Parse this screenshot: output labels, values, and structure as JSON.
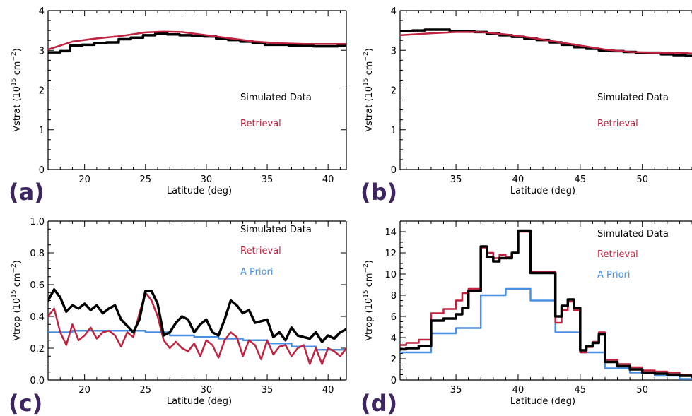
{
  "chart_data": [
    {
      "id": "a",
      "type": "line",
      "panel_label": "(a)",
      "xlabel": "Latitude (deg)",
      "ylabel_main": "Vstrat (10",
      "ylabel_exp": "15",
      "ylabel_unit": " cm",
      "ylabel_unit_exp": "−2",
      "ylabel_close": ")",
      "xlim": [
        17,
        41.5
      ],
      "ylim": [
        0,
        4
      ],
      "xticks": [
        20,
        25,
        30,
        35,
        40
      ],
      "yticks": [
        0,
        1,
        2,
        3,
        4
      ],
      "legend": [
        {
          "name": "Simulated Data",
          "color": "#000000"
        },
        {
          "name": "Retrieval",
          "color": "#c0223f"
        }
      ],
      "series": [
        {
          "name": "Simulated Data",
          "color": "#000000",
          "width": 3.5,
          "step": true,
          "x": [
            17,
            18,
            18.8,
            19.8,
            20.8,
            21.8,
            22.8,
            23.8,
            24.8,
            25.8,
            26.8,
            27.8,
            28.8,
            29.8,
            30.8,
            31.8,
            32.8,
            33.8,
            34.8,
            35.8,
            36.8,
            37.8,
            38.8,
            39.8,
            40.8,
            41.5
          ],
          "y": [
            2.95,
            2.98,
            3.12,
            3.14,
            3.18,
            3.2,
            3.28,
            3.32,
            3.38,
            3.42,
            3.4,
            3.38,
            3.36,
            3.35,
            3.3,
            3.26,
            3.22,
            3.18,
            3.14,
            3.14,
            3.12,
            3.12,
            3.1,
            3.1,
            3.12,
            3.12
          ]
        },
        {
          "name": "Retrieval",
          "color": "#c0223f",
          "width": 2.5,
          "step": false,
          "x": [
            17,
            19,
            21,
            23,
            25,
            26.5,
            28,
            30,
            32,
            34,
            36,
            38,
            40,
            41.5
          ],
          "y": [
            3.02,
            3.22,
            3.3,
            3.36,
            3.45,
            3.47,
            3.46,
            3.38,
            3.3,
            3.22,
            3.18,
            3.16,
            3.16,
            3.16
          ]
        }
      ]
    },
    {
      "id": "b",
      "type": "line",
      "panel_label": "(b)",
      "xlabel": "Latitude (deg)",
      "ylabel_main": "Vstrat (10",
      "ylabel_exp": "15",
      "ylabel_unit": " cm",
      "ylabel_unit_exp": "−2",
      "ylabel_close": ")",
      "xlim": [
        30.5,
        54
      ],
      "ylim": [
        0,
        4
      ],
      "xticks": [
        35,
        40,
        45,
        50
      ],
      "yticks": [
        0,
        1,
        2,
        3,
        4
      ],
      "legend": [
        {
          "name": "Simulated Data",
          "color": "#000000"
        },
        {
          "name": "Retrieval",
          "color": "#c0223f"
        }
      ],
      "series": [
        {
          "name": "Simulated Data",
          "color": "#000000",
          "width": 3.5,
          "step": true,
          "x": [
            30.5,
            31.5,
            32.5,
            33.5,
            34.5,
            35.5,
            36.5,
            37.5,
            38.5,
            39.5,
            40.5,
            41.5,
            42.5,
            43.5,
            44.5,
            45.5,
            46.5,
            47.5,
            48.5,
            49.5,
            50.5,
            51.5,
            52.5,
            53.5,
            54
          ],
          "y": [
            3.48,
            3.5,
            3.52,
            3.52,
            3.48,
            3.48,
            3.46,
            3.42,
            3.38,
            3.34,
            3.3,
            3.26,
            3.2,
            3.14,
            3.08,
            3.04,
            3.0,
            2.98,
            2.96,
            2.94,
            2.94,
            2.9,
            2.88,
            2.86,
            2.86
          ]
        },
        {
          "name": "Retrieval",
          "color": "#c0223f",
          "width": 2.5,
          "step": false,
          "x": [
            30.5,
            33,
            35,
            37,
            39,
            41,
            43,
            45,
            47,
            49,
            51,
            53,
            54
          ],
          "y": [
            3.38,
            3.43,
            3.46,
            3.46,
            3.4,
            3.32,
            3.22,
            3.12,
            3.02,
            2.96,
            2.94,
            2.94,
            2.92
          ]
        }
      ]
    },
    {
      "id": "c",
      "type": "line",
      "panel_label": "(c)",
      "xlabel": "Latitude (deg)",
      "ylabel_main": "Vtrop (10",
      "ylabel_exp": "15",
      "ylabel_unit": " cm",
      "ylabel_unit_exp": "−2",
      "ylabel_close": ")",
      "xlim": [
        17,
        41.5
      ],
      "ylim": [
        0,
        1.0
      ],
      "xticks": [
        20,
        25,
        30,
        35,
        40
      ],
      "yticks": [
        0.0,
        0.2,
        0.4,
        0.6,
        0.8,
        1.0
      ],
      "yfmt": 1,
      "legend": [
        {
          "name": "Simulated Data",
          "color": "#000000"
        },
        {
          "name": "Retrieval",
          "color": "#c0223f"
        },
        {
          "name": "A Priori",
          "color": "#4a90e2"
        }
      ],
      "series": [
        {
          "name": "A Priori",
          "color": "#4a90e2",
          "width": 2.5,
          "step": true,
          "x": [
            17,
            19,
            21,
            23,
            25,
            27,
            29,
            31,
            33,
            35,
            37,
            39,
            41.5
          ],
          "y": [
            0.3,
            0.31,
            0.31,
            0.31,
            0.3,
            0.28,
            0.27,
            0.26,
            0.25,
            0.23,
            0.21,
            0.19,
            0.18
          ]
        },
        {
          "name": "Retrieval",
          "color": "#c0223f",
          "width": 2.5,
          "step": false,
          "x": [
            17,
            17.5,
            18,
            18.5,
            19,
            19.5,
            20,
            20.5,
            21,
            21.5,
            22,
            22.5,
            23,
            23.5,
            24,
            24.5,
            25,
            25.5,
            26,
            26.5,
            27,
            27.5,
            28,
            28.5,
            29,
            29.5,
            30,
            30.5,
            31,
            31.5,
            32,
            32.5,
            33,
            33.5,
            34,
            34.5,
            35,
            35.5,
            36,
            36.5,
            37,
            37.5,
            38,
            38.5,
            39,
            39.5,
            40,
            40.5,
            41,
            41.5
          ],
          "y": [
            0.4,
            0.45,
            0.3,
            0.22,
            0.35,
            0.25,
            0.28,
            0.33,
            0.26,
            0.3,
            0.31,
            0.28,
            0.21,
            0.3,
            0.27,
            0.42,
            0.55,
            0.5,
            0.4,
            0.25,
            0.2,
            0.24,
            0.2,
            0.18,
            0.23,
            0.15,
            0.25,
            0.22,
            0.14,
            0.25,
            0.3,
            0.27,
            0.15,
            0.25,
            0.22,
            0.13,
            0.25,
            0.16,
            0.21,
            0.22,
            0.15,
            0.2,
            0.22,
            0.1,
            0.2,
            0.1,
            0.2,
            0.18,
            0.15,
            0.2
          ]
        },
        {
          "name": "Simulated Data",
          "color": "#000000",
          "width": 3.5,
          "step": false,
          "x": [
            17,
            17.5,
            18,
            18.5,
            19,
            19.5,
            20,
            20.5,
            21,
            21.5,
            22,
            22.5,
            23,
            23.5,
            24,
            24.5,
            25,
            25.5,
            26,
            26.5,
            27,
            27.5,
            28,
            28.5,
            29,
            29.5,
            30,
            30.5,
            31,
            31.5,
            32,
            32.5,
            33,
            33.5,
            34,
            34.5,
            35,
            35.5,
            36,
            36.5,
            37,
            37.5,
            38,
            38.5,
            39,
            39.5,
            40,
            40.5,
            41,
            41.5
          ],
          "y": [
            0.5,
            0.57,
            0.52,
            0.43,
            0.47,
            0.45,
            0.48,
            0.44,
            0.47,
            0.42,
            0.45,
            0.47,
            0.38,
            0.34,
            0.3,
            0.38,
            0.56,
            0.56,
            0.48,
            0.28,
            0.3,
            0.36,
            0.4,
            0.38,
            0.3,
            0.35,
            0.38,
            0.3,
            0.28,
            0.38,
            0.5,
            0.47,
            0.42,
            0.44,
            0.36,
            0.37,
            0.38,
            0.27,
            0.3,
            0.25,
            0.33,
            0.28,
            0.27,
            0.26,
            0.3,
            0.24,
            0.28,
            0.26,
            0.3,
            0.32
          ]
        }
      ]
    },
    {
      "id": "d",
      "type": "line",
      "panel_label": "(d)",
      "xlabel": "Latitude (deg)",
      "ylabel_main": "Vtrop (10",
      "ylabel_exp": "15",
      "ylabel_unit": " cm",
      "ylabel_unit_exp": "−2",
      "ylabel_close": ")",
      "xlim": [
        30.5,
        54
      ],
      "ylim": [
        0,
        15
      ],
      "xticks": [
        35,
        40,
        45,
        50
      ],
      "yticks": [
        0,
        2,
        4,
        6,
        8,
        10,
        12,
        14
      ],
      "legend": [
        {
          "name": "Simulated Data",
          "color": "#000000"
        },
        {
          "name": "Retrieval",
          "color": "#c0223f"
        },
        {
          "name": "A Priori",
          "color": "#4a90e2"
        }
      ],
      "series": [
        {
          "name": "A Priori",
          "color": "#4a90e2",
          "width": 2.5,
          "step": true,
          "x": [
            30.5,
            33,
            35,
            37,
            39,
            41,
            43,
            45,
            47,
            49,
            51,
            53,
            54
          ],
          "y": [
            2.6,
            4.4,
            4.9,
            8.0,
            8.6,
            7.5,
            4.5,
            2.6,
            1.1,
            0.7,
            0.4,
            0.1,
            0.1
          ]
        },
        {
          "name": "Retrieval",
          "color": "#c0223f",
          "width": 2.5,
          "step": true,
          "x": [
            30.5,
            31,
            32,
            33,
            34,
            35,
            35.5,
            36,
            37,
            37.5,
            38,
            38.5,
            39,
            39.5,
            40,
            41,
            42,
            43,
            43.5,
            44,
            44.5,
            45,
            45.5,
            46,
            46.5,
            47,
            48,
            49,
            50,
            51,
            52,
            53,
            54
          ],
          "y": [
            3.3,
            3.5,
            3.8,
            6.3,
            6.7,
            7.5,
            8.2,
            8.6,
            12.5,
            12.0,
            11.5,
            11.8,
            11.6,
            12.0,
            14.0,
            10.2,
            10.2,
            5.4,
            6.6,
            7.4,
            6.6,
            2.6,
            3.1,
            3.6,
            4.5,
            1.9,
            1.5,
            1.2,
            0.9,
            0.8,
            0.7,
            0.5,
            0.4
          ]
        },
        {
          "name": "Simulated Data",
          "color": "#000000",
          "width": 3.5,
          "step": true,
          "x": [
            30.5,
            31,
            32,
            33,
            34,
            35,
            35.5,
            36,
            37,
            37.5,
            38,
            38.5,
            39,
            39.5,
            40,
            41,
            42,
            43,
            43.5,
            44,
            44.5,
            45,
            45.5,
            46,
            46.5,
            47,
            48,
            49,
            50,
            51,
            52,
            53,
            54
          ],
          "y": [
            2.9,
            3.0,
            3.2,
            5.6,
            5.8,
            6.2,
            6.8,
            8.4,
            12.6,
            11.6,
            11.2,
            11.5,
            11.5,
            12.0,
            14.1,
            10.1,
            10.1,
            6.0,
            7.0,
            7.6,
            6.8,
            2.8,
            3.2,
            3.5,
            4.3,
            1.7,
            1.3,
            1.0,
            0.7,
            0.6,
            0.5,
            0.4,
            0.3
          ]
        }
      ]
    }
  ]
}
